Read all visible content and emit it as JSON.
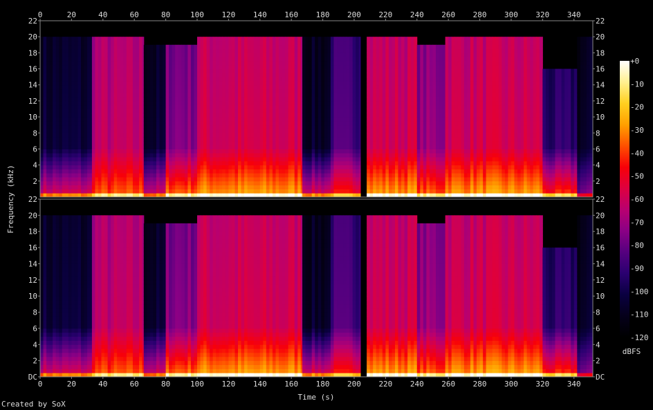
{
  "chart_data": {
    "type": "heatmap",
    "title": "",
    "xlabel": "Time (s)",
    "ylabel": "Frequency (kHz)",
    "xlim": [
      0,
      352
    ],
    "ylim": [
      0,
      22
    ],
    "x_ticks": [
      "0",
      "20",
      "40",
      "60",
      "80",
      "100",
      "120",
      "140",
      "160",
      "180",
      "200",
      "220",
      "240",
      "260",
      "280",
      "300",
      "320",
      "340"
    ],
    "y_ticks": [
      "DC",
      "2",
      "4",
      "6",
      "8",
      "10",
      "12",
      "14",
      "16",
      "18",
      "20",
      "22"
    ],
    "channels": [
      "top",
      "bottom"
    ],
    "colorbar": {
      "label": "dBFS",
      "ticks": [
        "+0",
        "-10",
        "-20",
        "-30",
        "-40",
        "-50",
        "-60",
        "-70",
        "-80",
        "-90",
        "-100",
        "-110",
        "-120"
      ],
      "range": [
        -120,
        0
      ],
      "colors": [
        "#000000",
        "#05001a",
        "#0a0040",
        "#2a0070",
        "#55007f",
        "#8a0085",
        "#b80070",
        "#dd0040",
        "#f80008",
        "#ff5000",
        "#ffa000",
        "#ffd020",
        "#fff090",
        "#ffffff"
      ]
    },
    "segments": [
      {
        "t0": 0,
        "t1": 33,
        "db": -102,
        "cutoff": 20,
        "low_boost": 45
      },
      {
        "t0": 33,
        "t1": 66,
        "db": -62,
        "cutoff": 20,
        "low_boost": 25
      },
      {
        "t0": 66,
        "t1": 80,
        "db": -104,
        "cutoff": 19,
        "low_boost": 45
      },
      {
        "t0": 80,
        "t1": 100,
        "db": -72,
        "cutoff": 19,
        "low_boost": 40
      },
      {
        "t0": 100,
        "t1": 167,
        "db": -57,
        "cutoff": 20,
        "low_boost": 30
      },
      {
        "t0": 167,
        "t1": 185,
        "db": -105,
        "cutoff": 20,
        "low_boost": 50
      },
      {
        "t0": 185,
        "t1": 204,
        "db": -85,
        "cutoff": 20,
        "low_boost": 40
      },
      {
        "t0": 204,
        "t1": 208,
        "db": -120,
        "cutoff": 0,
        "low_boost": 0
      },
      {
        "t0": 208,
        "t1": 240,
        "db": -57,
        "cutoff": 20,
        "low_boost": 30
      },
      {
        "t0": 240,
        "t1": 258,
        "db": -70,
        "cutoff": 19,
        "low_boost": 35
      },
      {
        "t0": 258,
        "t1": 320,
        "db": -57,
        "cutoff": 20,
        "low_boost": 30
      },
      {
        "t0": 320,
        "t1": 342,
        "db": -92,
        "cutoff": 16,
        "low_boost": 50
      },
      {
        "t0": 342,
        "t1": 352,
        "db": -106,
        "cutoff": 20,
        "low_boost": 30
      }
    ]
  },
  "footer": "Created by SoX"
}
